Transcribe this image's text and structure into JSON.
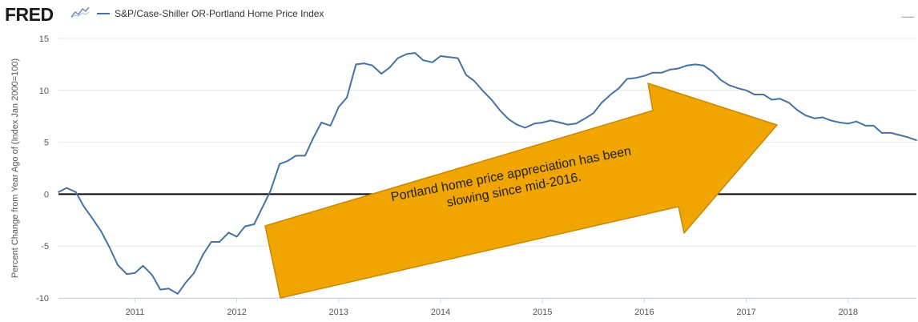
{
  "header": {
    "logo_text": "FRED",
    "logo_icon": "chart-line-icon",
    "legend_label": "S&P/Case-Shiller OR-Portland Home Price Index",
    "expand_icon": "fullscreen-icon"
  },
  "colors": {
    "series": "#4572a7",
    "zero_line": "#000000",
    "grid": "#e6e6e6",
    "arrow_fill": "#f0a500",
    "arrow_stroke": "#c98800"
  },
  "annotation": {
    "line1": "Portland home price appreciation has been",
    "line2": "slowing since mid-2016."
  },
  "chart_data": {
    "type": "line",
    "ylabel": "Percent Change from Year Ago of (Index Jan 2000=100)",
    "xlabel": "",
    "ylim": [
      -10,
      15
    ],
    "xlim": [
      2010.25,
      2018.67
    ],
    "yticks": [
      -10,
      -5,
      0,
      5,
      10,
      15
    ],
    "xticks": [
      2011,
      2012,
      2013,
      2014,
      2015,
      2016,
      2017,
      2018
    ],
    "grid": true,
    "reference_line": 0,
    "series": [
      {
        "name": "S&P/Case-Shiller OR-Portland Home Price Index",
        "x": [
          2010.25,
          2010.33,
          2010.42,
          2010.5,
          2010.58,
          2010.67,
          2010.75,
          2010.83,
          2010.92,
          2011.0,
          2011.08,
          2011.17,
          2011.25,
          2011.33,
          2011.42,
          2011.5,
          2011.58,
          2011.67,
          2011.75,
          2011.83,
          2011.92,
          2012.0,
          2012.08,
          2012.17,
          2012.25,
          2012.33,
          2012.42,
          2012.5,
          2012.58,
          2012.67,
          2012.75,
          2012.83,
          2012.92,
          2013.0,
          2013.08,
          2013.17,
          2013.25,
          2013.33,
          2013.42,
          2013.5,
          2013.58,
          2013.67,
          2013.75,
          2013.83,
          2013.92,
          2014.0,
          2014.08,
          2014.17,
          2014.25,
          2014.33,
          2014.42,
          2014.5,
          2014.58,
          2014.67,
          2014.75,
          2014.83,
          2014.92,
          2015.0,
          2015.08,
          2015.17,
          2015.25,
          2015.33,
          2015.42,
          2015.5,
          2015.58,
          2015.67,
          2015.75,
          2015.83,
          2015.92,
          2016.0,
          2016.08,
          2016.17,
          2016.25,
          2016.33,
          2016.42,
          2016.5,
          2016.58,
          2016.67,
          2016.75,
          2016.83,
          2016.92,
          2017.0,
          2017.08,
          2017.17,
          2017.25,
          2017.33,
          2017.42,
          2017.5,
          2017.58,
          2017.67,
          2017.75,
          2017.83,
          2017.92,
          2018.0,
          2018.08,
          2018.17,
          2018.25,
          2018.33,
          2018.42,
          2018.5,
          2018.58,
          2018.67
        ],
        "values": [
          0.2,
          0.6,
          0.2,
          -1.2,
          -2.3,
          -3.6,
          -5.1,
          -6.8,
          -7.7,
          -7.6,
          -6.9,
          -7.8,
          -9.2,
          -9.1,
          -9.6,
          -8.5,
          -7.6,
          -5.8,
          -4.6,
          -4.6,
          -3.7,
          -4.1,
          -3.1,
          -2.9,
          -1.3,
          0.3,
          2.9,
          3.2,
          3.7,
          3.7,
          5.4,
          6.9,
          6.6,
          8.4,
          9.3,
          12.5,
          12.6,
          12.4,
          11.6,
          12.2,
          13.1,
          13.5,
          13.6,
          12.9,
          12.7,
          13.3,
          13.2,
          13.1,
          11.5,
          10.9,
          9.9,
          9.1,
          8.1,
          7.2,
          6.7,
          6.4,
          6.8,
          6.9,
          7.1,
          6.9,
          6.7,
          6.8,
          7.3,
          7.8,
          8.8,
          9.6,
          10.2,
          11.1,
          11.2,
          11.4,
          11.7,
          11.7,
          12.0,
          12.1,
          12.4,
          12.5,
          12.4,
          11.8,
          11.0,
          10.5,
          10.2,
          10.0,
          9.6,
          9.6,
          9.1,
          9.2,
          8.8,
          8.1,
          7.6,
          7.3,
          7.4,
          7.1,
          6.9,
          6.8,
          7.0,
          6.6,
          6.6,
          5.9,
          5.9,
          5.7,
          5.5,
          5.2
        ]
      }
    ]
  }
}
